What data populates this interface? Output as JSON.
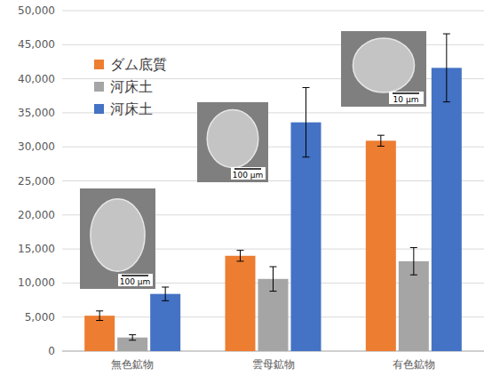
{
  "chart_data": {
    "type": "bar",
    "categories": [
      "無色鉱物",
      "雲母鉱物",
      "有色鉱物"
    ],
    "series": [
      {
        "name": "ダム底質",
        "color": "#ed7d31",
        "values": [
          5200,
          14000,
          30900
        ],
        "errors": [
          700,
          800,
          800
        ]
      },
      {
        "name": "河床土",
        "color": "#a5a5a5",
        "values": [
          2000,
          10600,
          13200
        ],
        "errors": [
          400,
          1800,
          2000
        ]
      },
      {
        "name": "河床土",
        "color": "#4472c4",
        "values": [
          8400,
          33600,
          41600
        ],
        "errors": [
          1000,
          5100,
          5000
        ]
      }
    ],
    "ylim": [
      0,
      50000
    ],
    "yticks": [
      0,
      {
        "value": 5000,
        "label": "5,000"
      },
      {
        "value": 10000,
        "label": "10,000"
      },
      {
        "value": 15000,
        "label": "15,000"
      },
      {
        "value": 20000,
        "label": "20,000"
      },
      {
        "value": 25000,
        "label": "25,000"
      },
      {
        "value": 30000,
        "label": "30,000"
      },
      {
        "value": 35000,
        "label": "35,000"
      },
      {
        "value": 40000,
        "label": "40,000"
      },
      {
        "value": 45000,
        "label": "45,000"
      },
      {
        "value": 50000,
        "label": "50,000"
      }
    ],
    "annotations": [
      "100 µm",
      "100 µm",
      "10 µm"
    ],
    "grid": true,
    "legend": "upper left"
  }
}
